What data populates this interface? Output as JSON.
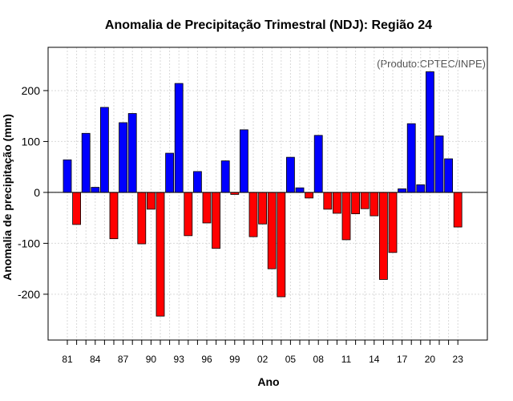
{
  "chart_data": {
    "type": "bar",
    "title": "Anomalia de Precipitação Trimestral (NDJ): Região 24",
    "xlabel": "Ano",
    "ylabel": "Anomalia de precipitação (mm)",
    "credit": "(Produto:CPTEC/INPE)",
    "ylim": [
      -290,
      285
    ],
    "yticks": [
      -200,
      -100,
      0,
      100,
      200
    ],
    "categories": [
      "81",
      "82",
      "83",
      "84",
      "85",
      "86",
      "87",
      "88",
      "89",
      "90",
      "91",
      "92",
      "93",
      "94",
      "95",
      "96",
      "97",
      "98",
      "99",
      "00",
      "01",
      "02",
      "03",
      "04",
      "05",
      "06",
      "07",
      "08",
      "09",
      "10",
      "11",
      "12",
      "13",
      "14",
      "15",
      "16",
      "17",
      "18",
      "19",
      "20",
      "21",
      "22",
      "23"
    ],
    "xtick_labels": [
      "81",
      "84",
      "87",
      "90",
      "93",
      "96",
      "99",
      "02",
      "05",
      "08",
      "11",
      "14",
      "17",
      "20",
      "23"
    ],
    "values": [
      64,
      -63,
      116,
      10,
      167,
      -91,
      137,
      155,
      -101,
      -33,
      -243,
      77,
      214,
      -85,
      41,
      -60,
      -110,
      62,
      -4,
      123,
      -87,
      -62,
      -150,
      -205,
      69,
      9,
      -11,
      112,
      -33,
      -41,
      -93,
      -42,
      -32,
      -46,
      -171,
      -118,
      7,
      135,
      15,
      237,
      111,
      66,
      -68
    ],
    "colors": {
      "positive": "#0000ff",
      "negative": "#ff0000",
      "zero_line": "#000000"
    },
    "grid": true
  }
}
